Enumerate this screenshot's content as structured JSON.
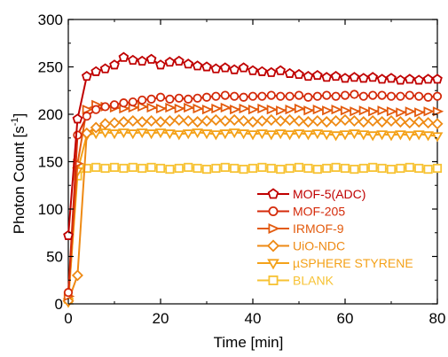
{
  "chart_data": {
    "type": "line",
    "xlabel": "Time [min]",
    "ylabel": "Photon Count [s",
    "ylabel_sup": "-1",
    "ylabel_suffix": "]",
    "xlim": [
      0,
      80
    ],
    "ylim": [
      0,
      300
    ],
    "xticks": [
      "0",
      "20",
      "40",
      "60",
      "80"
    ],
    "yticks": [
      "0",
      "50",
      "100",
      "150",
      "200",
      "250",
      "300"
    ],
    "grid": false,
    "legend_position": "lower-right",
    "x": [
      0,
      2,
      4,
      6,
      8,
      10,
      12,
      14,
      16,
      18,
      20,
      22,
      24,
      26,
      28,
      30,
      32,
      34,
      36,
      38,
      40,
      42,
      44,
      46,
      48,
      50,
      52,
      54,
      56,
      58,
      60,
      62,
      64,
      66,
      68,
      70,
      72,
      74,
      76,
      78,
      80
    ],
    "series": [
      {
        "name": "MOF-5(ADC)",
        "color": "#c00000",
        "marker": "pentagon",
        "values": [
          72,
          195,
          240,
          245,
          248,
          252,
          260,
          257,
          256,
          258,
          252,
          255,
          256,
          253,
          251,
          250,
          248,
          249,
          247,
          249,
          246,
          245,
          244,
          246,
          243,
          242,
          240,
          241,
          239,
          240,
          238,
          239,
          238,
          239,
          237,
          238,
          236,
          237,
          236,
          237,
          237
        ]
      },
      {
        "name": "MOF-205",
        "color": "#d42a0a",
        "marker": "circle",
        "values": [
          12,
          178,
          198,
          205,
          208,
          210,
          212,
          213,
          215,
          216,
          218,
          216,
          217,
          216,
          217,
          218,
          219,
          220,
          219,
          218,
          219,
          219,
          220,
          219,
          219,
          220,
          218,
          219,
          220,
          219,
          220,
          221,
          219,
          220,
          220,
          219,
          219,
          220,
          219,
          218,
          219
        ]
      },
      {
        "name": "IRMOF-9",
        "color": "#e35b0e",
        "marker": "triangle-right",
        "values": [
          8,
          148,
          205,
          210,
          208,
          207,
          206,
          207,
          208,
          207,
          206,
          207,
          206,
          207,
          206,
          205,
          206,
          207,
          205,
          206,
          205,
          206,
          205,
          204,
          205,
          206,
          204,
          205,
          204,
          205,
          204,
          203,
          204,
          203,
          204,
          203,
          202,
          203,
          202,
          203,
          203
        ]
      },
      {
        "name": "UiO-NDC",
        "color": "#ee8a14",
        "marker": "diamond",
        "values": [
          3,
          30,
          180,
          186,
          190,
          191,
          192,
          193,
          192,
          193,
          192,
          193,
          194,
          193,
          192,
          193,
          194,
          193,
          194,
          193,
          192,
          193,
          194,
          193,
          194,
          193,
          192,
          193,
          192,
          193,
          194,
          193,
          192,
          193,
          192,
          193,
          192,
          191,
          192,
          191,
          190
        ]
      },
      {
        "name": "µSPHERE STYRENE",
        "color": "#f4a21a",
        "marker": "triangle-down",
        "values": [
          2,
          140,
          178,
          180,
          181,
          180,
          181,
          180,
          181,
          180,
          181,
          180,
          179,
          180,
          181,
          180,
          179,
          180,
          181,
          180,
          179,
          180,
          179,
          180,
          179,
          180,
          179,
          180,
          179,
          178,
          179,
          180,
          179,
          178,
          179,
          178,
          179,
          178,
          179,
          178,
          177
        ]
      },
      {
        "name": "BLANK",
        "color": "#f7c233",
        "marker": "square",
        "values": [
          5,
          135,
          143,
          144,
          143,
          144,
          143,
          144,
          143,
          144,
          143,
          142,
          143,
          144,
          143,
          142,
          143,
          144,
          143,
          142,
          143,
          144,
          143,
          142,
          143,
          144,
          143,
          142,
          143,
          144,
          143,
          142,
          143,
          144,
          143,
          142,
          143,
          144,
          143,
          142,
          143
        ]
      }
    ]
  }
}
